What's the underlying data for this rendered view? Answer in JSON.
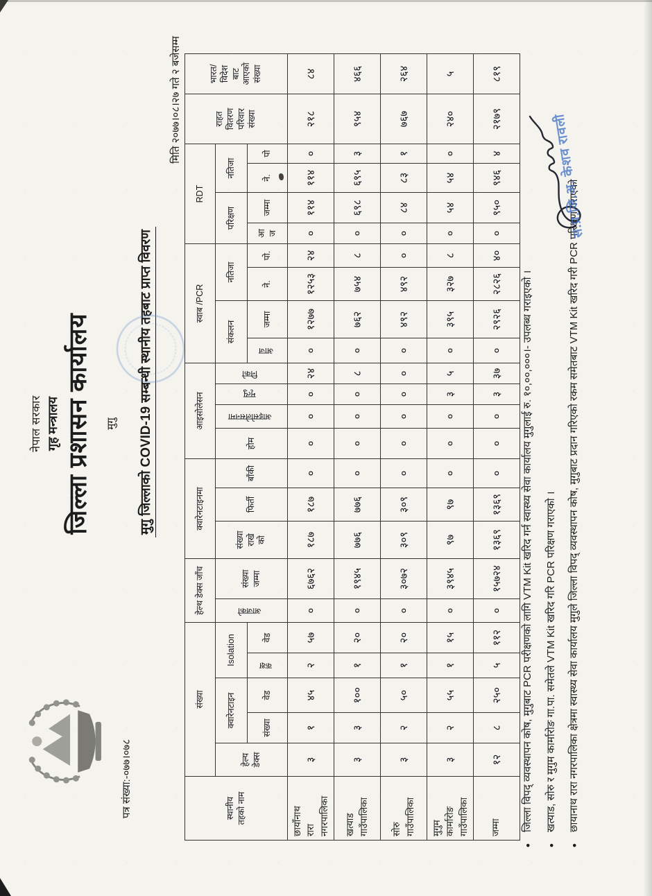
{
  "page": {
    "letter_no": "पत्र संख्या:-०७७।०७८",
    "header": {
      "government": "नेपाल सरकार",
      "ministry": "गृह मन्त्रालय",
      "office": "जिल्ला प्रशासन कार्यालय",
      "district": "मुगु"
    },
    "title": "मुगु जिल्लाको COVID-19 सम्बन्धी स्थानीय तहबाट प्राप्त विवरण",
    "date_line": "मिति २०७७।०८।२७ गते २ बजेसम्म"
  },
  "table": {
    "headers": {
      "name": "स्थानीय\nतहको नाम",
      "sankhya_group": "संख्या",
      "helth_desk": "हेल्य\nडेक्स",
      "quarantine": "क्वारेनटाइन",
      "quar_sankhya": "संख्या",
      "quar_bed": "वेड",
      "isolation": "Isolation",
      "iso_kaksha": "कक्ष",
      "iso_bed": "वेड",
      "jaanch_group": "हेल्थ डेक्स जाँच",
      "jaanch_aajko": "आजको",
      "jaanch_jamma": "संख्या\nजम्मा",
      "quarma_group": "क्वारेनटाइनमा",
      "rakheko": "संख्या\nराखे\nको",
      "phirti": "फिर्ती",
      "baki": "बाँकी",
      "isolation_group": "आइसोलेसन",
      "hom": "होम",
      "isolationma": "आइसोलेसनमा",
      "mrityu": "मृत्यु",
      "niko": "निको",
      "swab_group": "स्वाब /PCR",
      "sankalan": "संकलन",
      "swab_aaj": "आज",
      "swab_jamma": "जम्मा",
      "natija": "नतिजा",
      "ne": "ने.",
      "po": "पो.",
      "rdt_group": "RDT",
      "parikshyan": "परिक्षण",
      "rdt_aaj": "आ\nज",
      "rdt_jamma": "जम्मा",
      "rdt_natija": "नतिजा",
      "rdt_ne": "ने.",
      "rdt_po": "पो",
      "rahat": "राहत\nवितरण\nपरिवार\nसंख्या",
      "bharat": "भारत/\nविदेश\nबाट\nआएको\nसंख्या"
    },
    "rows": [
      {
        "name": "छायाँनाथ\nरारा\nनगरपालिका",
        "cells": [
          "३",
          "१",
          "४५",
          "२",
          "५७",
          "०",
          "६७६२",
          "१८७",
          "१८७",
          "०",
          "०",
          "०",
          "०",
          "२४",
          "०",
          "१२७७",
          "१२५३",
          "२४",
          "०",
          "११४",
          "११४",
          "०",
          "२१८",
          "८४"
        ]
      },
      {
        "name": "खत्याड\nगाउँपालिका",
        "cells": [
          "३",
          "३",
          "१००",
          "१",
          "२०",
          "०",
          "१९४५",
          "७७६",
          "७७६",
          "०",
          "०",
          "०",
          "०",
          "८",
          "०",
          "७६२",
          "७५४",
          "८",
          "०",
          "६९८",
          "६९५",
          "३",
          "९५४",
          "४६६"
        ]
      },
      {
        "name": "सोरु\nगाउँपालिका",
        "cells": [
          "३",
          "२",
          "५०",
          "१",
          "२०",
          "०",
          "३०७२",
          "३०९",
          "३०९",
          "०",
          "०",
          "०",
          "०",
          "०",
          "०",
          "४९२",
          "४९२",
          "०",
          "०",
          "८४",
          "८३",
          "१",
          "७६७",
          "२६४"
        ]
      },
      {
        "name": "मुगुम\nकार्मारोङ\nगाउँपालिका",
        "cells": [
          "३",
          "२",
          "५५",
          "१",
          "१५",
          "०",
          "३९४५",
          "९७",
          "९७",
          "०",
          "०",
          "०",
          "३",
          "५",
          "०",
          "३९५",
          "३२७",
          "८",
          "०",
          "५४",
          "५४",
          "०",
          "२४०",
          "५"
        ]
      },
      {
        "name": "जम्मा",
        "is_total": true,
        "cells": [
          "१२",
          "८",
          "२५०",
          "५",
          "११२",
          "०",
          "१५७२४",
          "१३६९",
          "१३६९",
          "०",
          "०",
          "०",
          "३",
          "३७",
          "०",
          "२९२६",
          "२८२६",
          "४०",
          "०",
          "९५०",
          "९४६",
          "४",
          "२१७९",
          "८१९"
        ]
      }
    ]
  },
  "footnotes": [
    "जिल्ला विपद् व्यवस्थापन कोष, मुगुबाट PCR परीक्षणको लागि VTM Kit खरिद गर्न स्वास्थ्य सेवा कार्यालय मुगुलाई रु. १०,००,०००।- उपलब्ध गराइएको ।",
    "खत्याड, सोरु र मुगुम कार्मारोङ गा.पा. समेतले VTM Kit खरिद गरि PCR परिक्षण गराएको ।",
    "छायानाथ रारा नगरपालिका क्षेत्रमा स्वास्थ्य सेवा कार्यालय मुगुले जिल्ला विपद् व्यवस्थापन कोष, मुगुबाट प्रदान गरिएको रकम समेतबाट VTM Kit खरिद गरी PCR परिक्षण गराएको"
  ],
  "signature": {
    "stamp_text": "स.प्र.जि.अ. केशव रावली"
  },
  "colors": {
    "paper": "#f4f3ed",
    "ink": "#1c1c1c",
    "stamp_blue": "#3f6fc4"
  }
}
